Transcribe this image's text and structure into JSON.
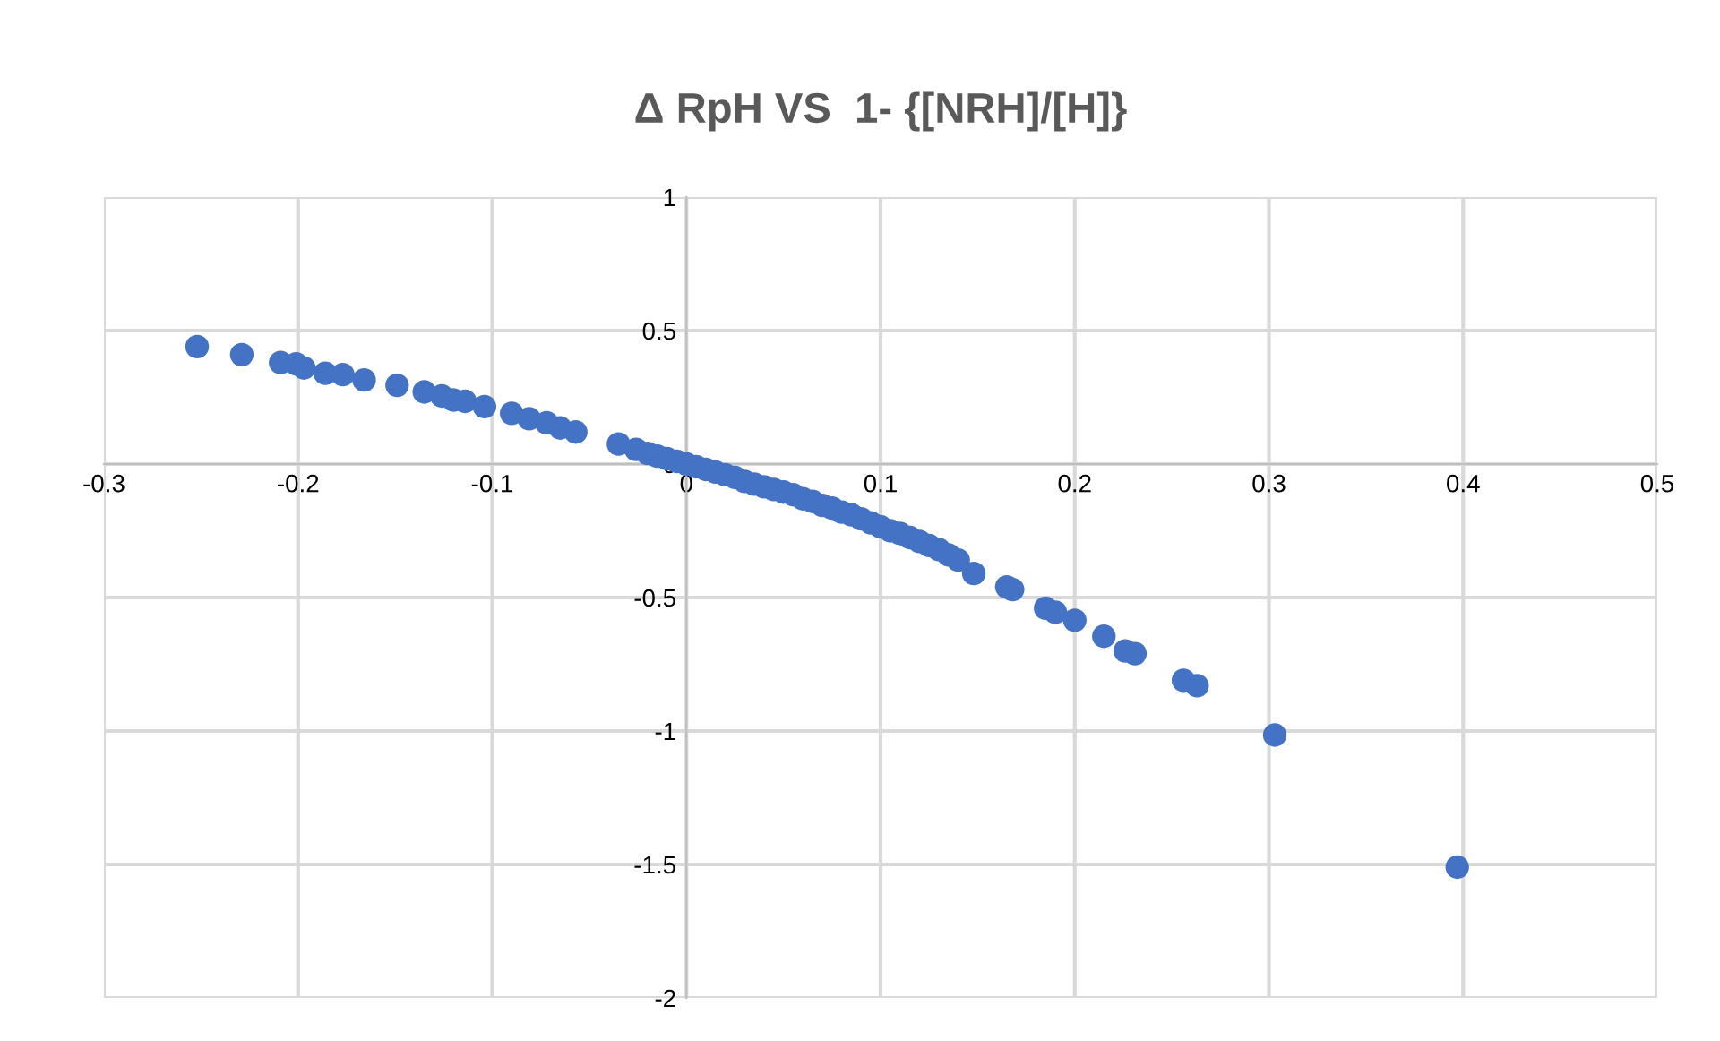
{
  "chart_data": {
    "type": "scatter",
    "title": "Δ RpH VS  1- {[NRH]/[H]}",
    "series": [
      {
        "color": "#4472c4",
        "x": [
          -0.252,
          -0.229,
          -0.209,
          -0.201,
          -0.197,
          -0.186,
          -0.177,
          -0.166,
          -0.149,
          -0.135,
          -0.126,
          -0.12,
          -0.114,
          -0.104,
          -0.09,
          -0.081,
          -0.072,
          -0.065,
          -0.057,
          -0.035,
          -0.026,
          -0.02,
          -0.015,
          -0.01,
          -0.005,
          0,
          0.005,
          0.01,
          0.015,
          0.02,
          0.025,
          0.03,
          0.035,
          0.04,
          0.045,
          0.05,
          0.055,
          0.06,
          0.065,
          0.07,
          0.075,
          0.08,
          0.085,
          0.09,
          0.095,
          0.1,
          0.105,
          0.11,
          0.115,
          0.12,
          0.125,
          0.13,
          0.135,
          0.14,
          0.148,
          0.165,
          0.168,
          0.185,
          0.19,
          0.2,
          0.215,
          0.226,
          0.231,
          0.256,
          0.263,
          0.303,
          0.397
        ],
        "values": [
          0.44,
          0.41,
          0.38,
          0.375,
          0.36,
          0.34,
          0.335,
          0.315,
          0.295,
          0.27,
          0.255,
          0.24,
          0.235,
          0.215,
          0.19,
          0.17,
          0.155,
          0.135,
          0.12,
          0.075,
          0.055,
          0.04,
          0.03,
          0.02,
          0.01,
          0,
          -0.01,
          -0.02,
          -0.03,
          -0.04,
          -0.05,
          -0.065,
          -0.075,
          -0.085,
          -0.095,
          -0.105,
          -0.115,
          -0.13,
          -0.14,
          -0.155,
          -0.165,
          -0.18,
          -0.19,
          -0.205,
          -0.22,
          -0.235,
          -0.25,
          -0.26,
          -0.275,
          -0.29,
          -0.305,
          -0.32,
          -0.34,
          -0.36,
          -0.41,
          -0.46,
          -0.47,
          -0.54,
          -0.555,
          -0.585,
          -0.645,
          -0.7,
          -0.71,
          -0.81,
          -0.83,
          -1.015,
          -1.51
        ]
      }
    ],
    "xlim": [
      -0.3,
      0.5
    ],
    "xticks": [
      -0.3,
      -0.2,
      -0.1,
      0,
      0.1,
      0.2,
      0.3,
      0.4,
      0.5
    ],
    "ylim": [
      -2,
      1
    ],
    "yticks": [
      -2,
      -1.5,
      -1,
      -0.5,
      0,
      0.5,
      1
    ],
    "grid": true,
    "marker": "circle",
    "legend": false
  }
}
